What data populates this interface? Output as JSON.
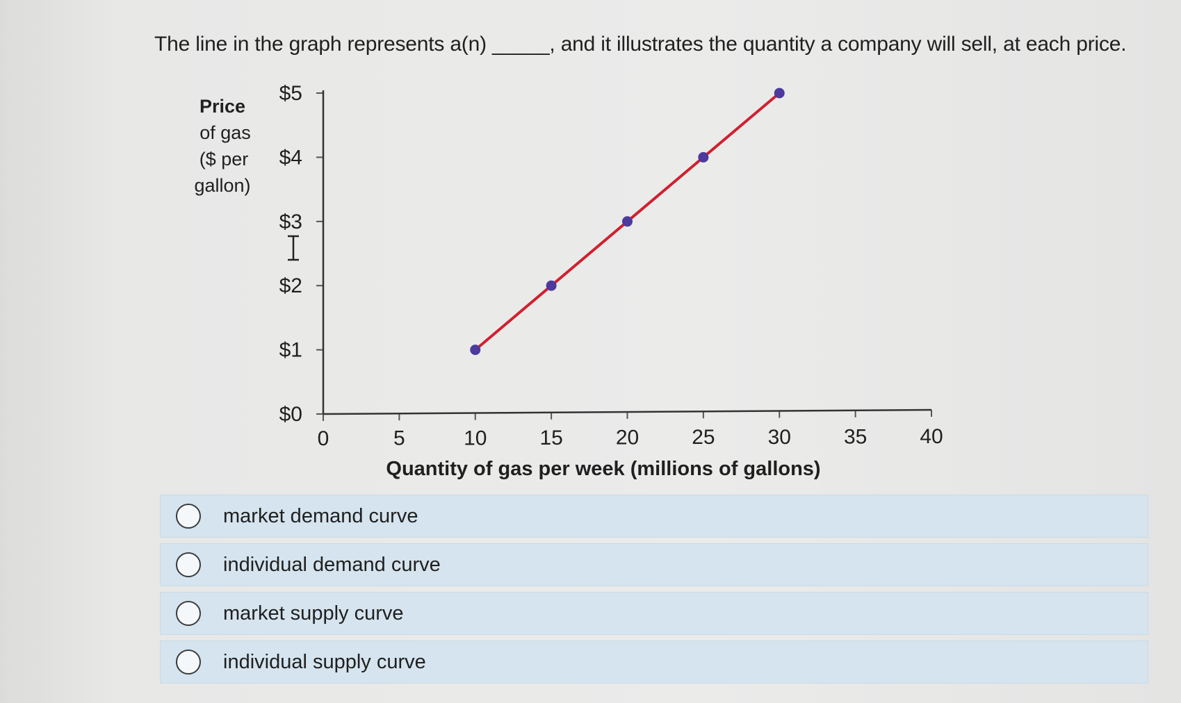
{
  "question": {
    "text": "The line in the graph represents a(n) _____, and it illustrates the quantity a company will sell, at each price."
  },
  "chart_data": {
    "type": "line",
    "ylabel_lines": [
      "Price",
      "of gas",
      "($ per",
      "gallon)"
    ],
    "xlabel": "Quantity of gas per week (millions of gallons)",
    "x_ticks": [
      "0",
      "5",
      "10",
      "15",
      "20",
      "25",
      "30",
      "35",
      "40"
    ],
    "y_ticks": [
      "$0",
      "$1",
      "$2",
      "$3",
      "$4",
      "$5"
    ],
    "xlim": [
      0,
      40
    ],
    "ylim": [
      0,
      5
    ],
    "series": [
      {
        "x": [
          10,
          15,
          20,
          25,
          30
        ],
        "y": [
          1,
          2,
          3,
          4,
          5
        ],
        "line_color": "#d0202f",
        "marker_color": "#4d3a9c"
      }
    ],
    "grid": false
  },
  "options": [
    {
      "label": "market demand curve"
    },
    {
      "label": "individual demand curve"
    },
    {
      "label": "market supply curve"
    },
    {
      "label": "individual supply curve"
    }
  ]
}
